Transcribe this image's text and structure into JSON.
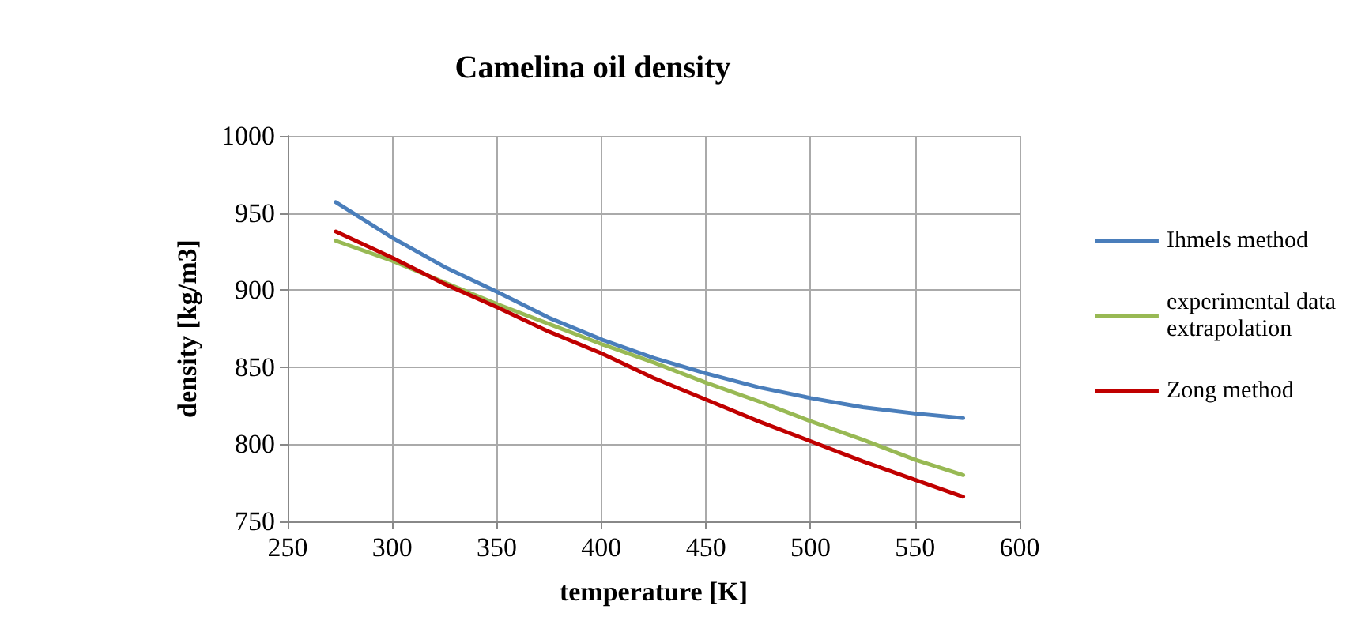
{
  "chart_data": {
    "type": "line",
    "title": "Camelina oil density",
    "xlabel": "temperature [K]",
    "ylabel": "density [kg/m3]",
    "x": [
      273,
      300,
      325,
      350,
      375,
      400,
      425,
      450,
      475,
      500,
      525,
      550,
      573
    ],
    "series": [
      {
        "name": "Ihmels method",
        "color": "#4a7ebb",
        "values": [
          957,
          934,
          915,
          899,
          882,
          868,
          856,
          846,
          837,
          830,
          824,
          820,
          817
        ]
      },
      {
        "name": "experimental data extrapolation",
        "color": "#98b954",
        "values": [
          932,
          919,
          905,
          891,
          878,
          865,
          853,
          840,
          828,
          815,
          803,
          790,
          780
        ]
      },
      {
        "name": "Zong method",
        "color": "#c00000",
        "values": [
          938,
          921,
          904,
          889,
          873,
          859,
          843,
          829,
          815,
          802,
          789,
          777,
          766
        ]
      }
    ],
    "xlim": [
      250,
      600
    ],
    "xticks": [
      250,
      300,
      350,
      400,
      450,
      500,
      550,
      600
    ],
    "ylim": [
      750,
      1000
    ],
    "yticks": [
      750,
      800,
      850,
      900,
      950,
      1000
    ],
    "grid": true,
    "legend": "right",
    "marker": "none",
    "line_style": "solid"
  }
}
